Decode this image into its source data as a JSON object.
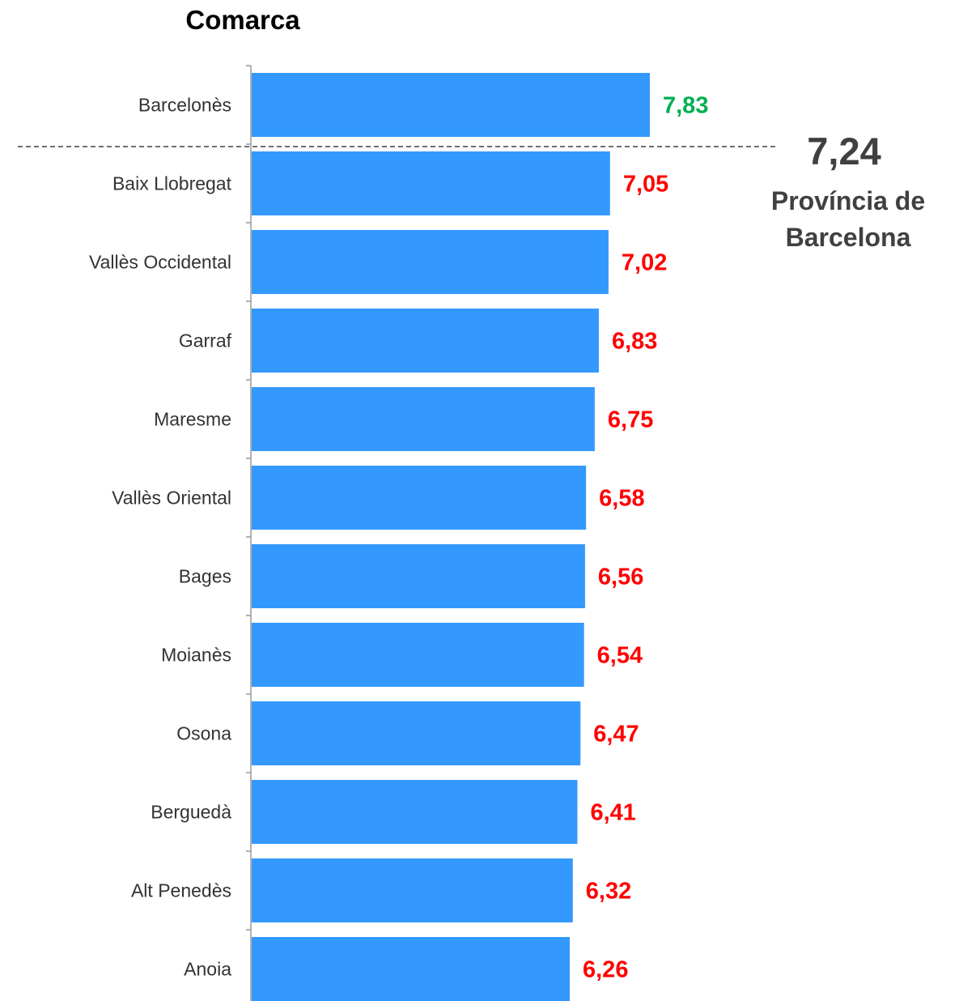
{
  "chart_data": {
    "type": "bar",
    "orientation": "horizontal",
    "title": "Comarca",
    "categories": [
      "Barcelonès",
      "Baix Llobregat",
      "Vallès Occidental",
      "Garraf",
      "Maresme",
      "Vallès Oriental",
      "Bages",
      "Moianès",
      "Osona",
      "Berguedà",
      "Alt Penedès",
      "Anoia"
    ],
    "values": [
      7.83,
      7.05,
      7.02,
      6.83,
      6.75,
      6.58,
      6.56,
      6.54,
      6.47,
      6.41,
      6.32,
      6.26
    ],
    "labels": [
      "7,83",
      "7,05",
      "7,02",
      "6,83",
      "6,75",
      "6,58",
      "6,56",
      "6,54",
      "6,47",
      "6,41",
      "6,32",
      "6,26"
    ],
    "reference_line": {
      "value": 7.24,
      "value_label": "7,24",
      "label_lines": [
        "Província de",
        "Barcelona"
      ],
      "style": "dashed"
    },
    "grid": false,
    "legend": "none"
  },
  "colors": {
    "bar": "#3399ff",
    "title": "#0070c0",
    "above_reference": "#00b050",
    "below_reference": "#ff0000",
    "reference_line": "#404040",
    "axis": "#999999"
  }
}
